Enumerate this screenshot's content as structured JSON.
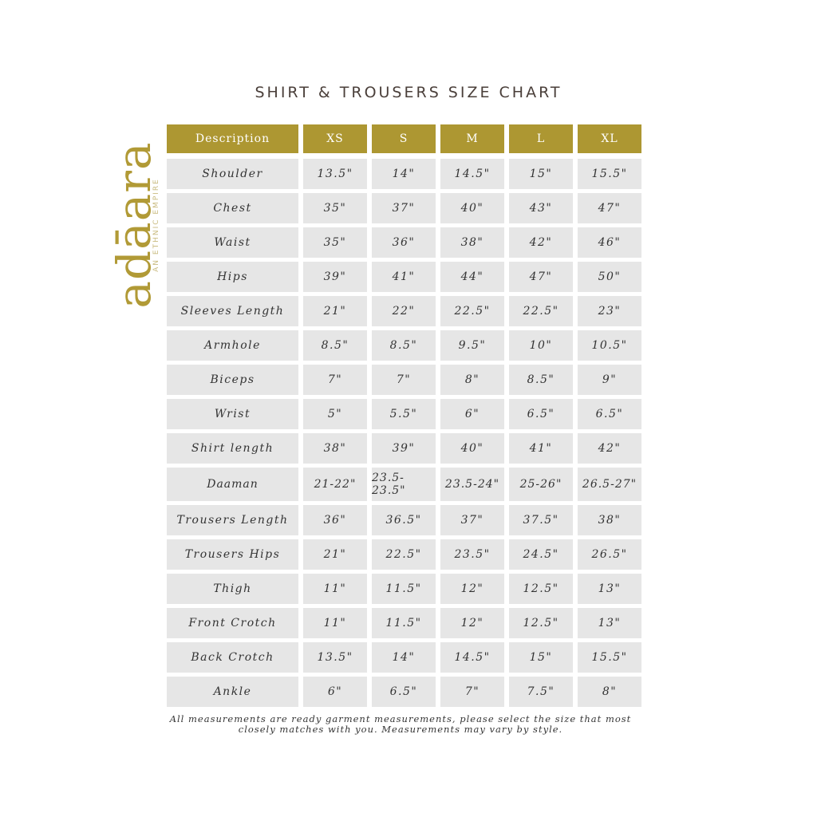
{
  "title": "SHIRT & TROUSERS SIZE CHART",
  "logo": {
    "brand": "adāara",
    "tagline": "AN ETHNIC EMPIRE"
  },
  "colors": {
    "header": "#ad9732",
    "cell": "#e6e6e6",
    "logo": "#b19a36"
  },
  "headers": [
    "Description",
    "XS",
    "S",
    "M",
    "L",
    "XL"
  ],
  "rows": [
    [
      "Shoulder",
      "13.5\"",
      "14\"",
      "14.5\"",
      "15\"",
      "15.5\""
    ],
    [
      "Chest",
      "35\"",
      "37\"",
      "40\"",
      "43\"",
      "47\""
    ],
    [
      "Waist",
      "35\"",
      "36\"",
      "38\"",
      "42\"",
      "46\""
    ],
    [
      "Hips",
      "39\"",
      "41\"",
      "44\"",
      "47\"",
      "50\""
    ],
    [
      "Sleeves Length",
      "21\"",
      "22\"",
      "22.5\"",
      "22.5\"",
      "23\""
    ],
    [
      "Armhole",
      "8.5\"",
      "8.5\"",
      "9.5\"",
      "10\"",
      "10.5\""
    ],
    [
      "Biceps",
      "7\"",
      "7\"",
      "8\"",
      "8.5\"",
      "9\""
    ],
    [
      "Wrist",
      "5\"",
      "5.5\"",
      "6\"",
      "6.5\"",
      "6.5\""
    ],
    [
      "Shirt length",
      "38\"",
      "39\"",
      "40\"",
      "41\"",
      "42\""
    ],
    [
      "Daaman",
      "21-22\"",
      "23.5-23.5\"",
      "23.5-24\"",
      "25-26\"",
      "26.5-27\""
    ],
    [
      "Trousers Length",
      "36\"",
      "36.5\"",
      "37\"",
      "37.5\"",
      "38\""
    ],
    [
      "Trousers Hips",
      "21\"",
      "22.5\"",
      "23.5\"",
      "24.5\"",
      "26.5\""
    ],
    [
      "Thigh",
      "11\"",
      "11.5\"",
      "12\"",
      "12.5\"",
      "13\""
    ],
    [
      "Front Crotch",
      "11\"",
      "11.5\"",
      "12\"",
      "12.5\"",
      "13\""
    ],
    [
      "Back Crotch",
      "13.5\"",
      "14\"",
      "14.5\"",
      "15\"",
      "15.5\""
    ],
    [
      "Ankle",
      "6\"",
      "6.5\"",
      "7\"",
      "7.5\"",
      "8\""
    ]
  ],
  "note": [
    "All measurements are ready garment measurements, please select the size that most",
    "closely matches with you. Measurements may vary by style."
  ]
}
